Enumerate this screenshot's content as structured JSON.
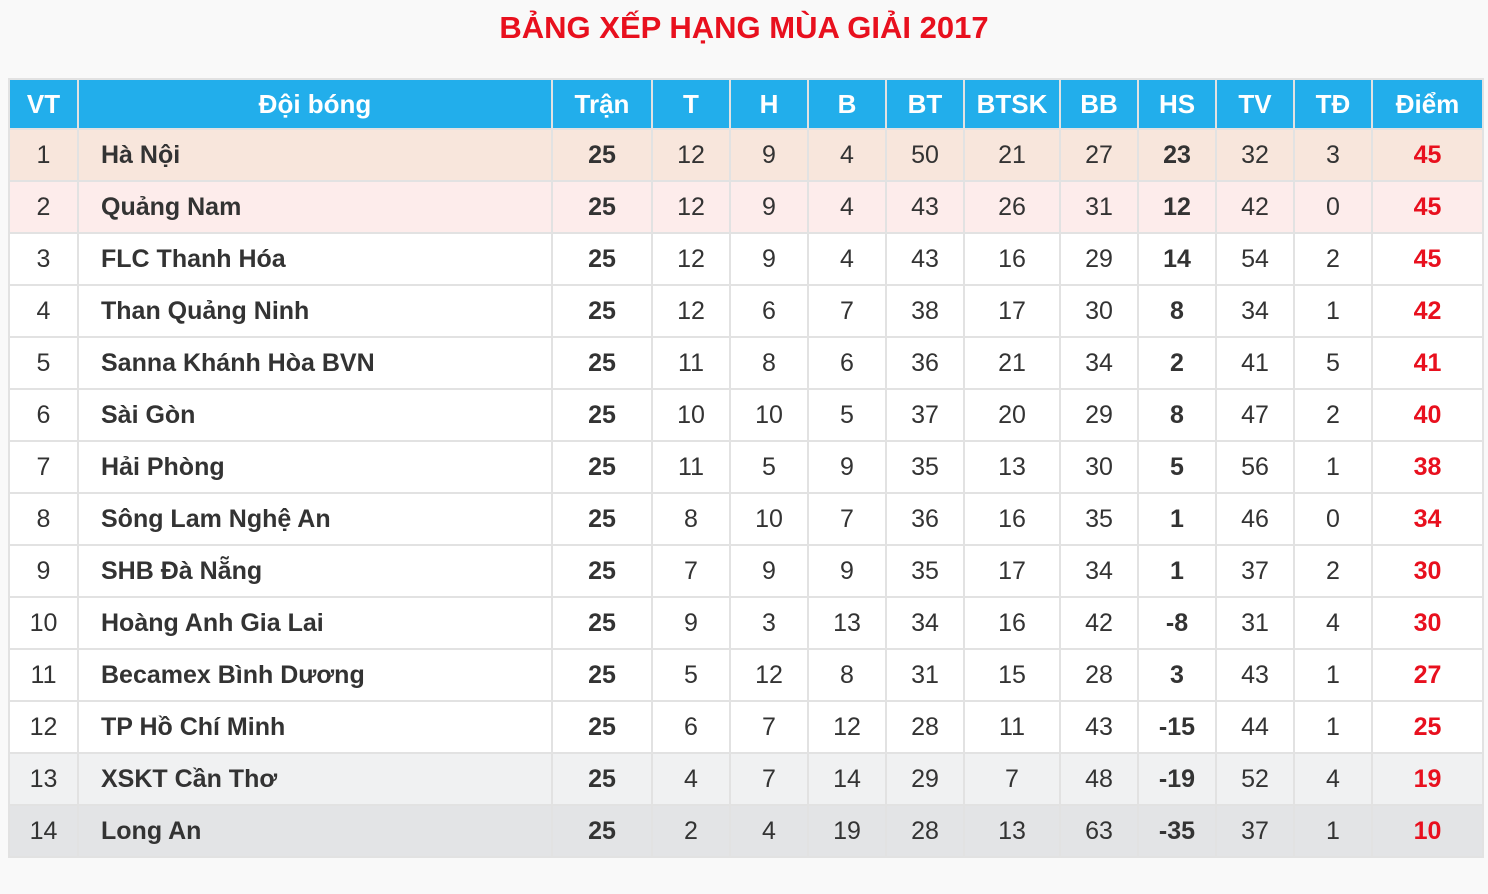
{
  "title": "BẢNG XẾP HẠNG MÙA GIẢI 2017",
  "headers": [
    "VT",
    "Đội bóng",
    "Trận",
    "T",
    "H",
    "B",
    "BT",
    "BTSK",
    "BB",
    "HS",
    "TV",
    "TĐ",
    "Điểm"
  ],
  "colors": {
    "header": "#22aeeb",
    "title": "#e8101e",
    "points": "#e8101e"
  },
  "rows": [
    [
      "1",
      "Hà Nội",
      "25",
      "12",
      "9",
      "4",
      "50",
      "21",
      "27",
      "23",
      "32",
      "3",
      "45"
    ],
    [
      "2",
      "Quảng Nam",
      "25",
      "12",
      "9",
      "4",
      "43",
      "26",
      "31",
      "12",
      "42",
      "0",
      "45"
    ],
    [
      "3",
      "FLC Thanh Hóa",
      "25",
      "12",
      "9",
      "4",
      "43",
      "16",
      "29",
      "14",
      "54",
      "2",
      "45"
    ],
    [
      "4",
      "Than Quảng Ninh",
      "25",
      "12",
      "6",
      "7",
      "38",
      "17",
      "30",
      "8",
      "34",
      "1",
      "42"
    ],
    [
      "5",
      "Sanna Khánh Hòa BVN",
      "25",
      "11",
      "8",
      "6",
      "36",
      "21",
      "34",
      "2",
      "41",
      "5",
      "41"
    ],
    [
      "6",
      "Sài Gòn",
      "25",
      "10",
      "10",
      "5",
      "37",
      "20",
      "29",
      "8",
      "47",
      "2",
      "40"
    ],
    [
      "7",
      "Hải Phòng",
      "25",
      "11",
      "5",
      "9",
      "35",
      "13",
      "30",
      "5",
      "56",
      "1",
      "38"
    ],
    [
      "8",
      "Sông Lam Nghệ An",
      "25",
      "8",
      "10",
      "7",
      "36",
      "16",
      "35",
      "1",
      "46",
      "0",
      "34"
    ],
    [
      "9",
      "SHB Đà Nẵng",
      "25",
      "7",
      "9",
      "9",
      "35",
      "17",
      "34",
      "1",
      "37",
      "2",
      "30"
    ],
    [
      "10",
      "Hoàng Anh Gia Lai",
      "25",
      "9",
      "3",
      "13",
      "34",
      "16",
      "42",
      "-8",
      "31",
      "4",
      "30"
    ],
    [
      "11",
      "Becamex Bình Dương",
      "25",
      "5",
      "12",
      "8",
      "31",
      "15",
      "28",
      "3",
      "43",
      "1",
      "27"
    ],
    [
      "12",
      "TP Hồ Chí Minh",
      "25",
      "6",
      "7",
      "12",
      "28",
      "11",
      "43",
      "-15",
      "44",
      "1",
      "25"
    ],
    [
      "13",
      "XSKT Cần Thơ",
      "25",
      "4",
      "7",
      "14",
      "29",
      "7",
      "48",
      "-19",
      "52",
      "4",
      "19"
    ],
    [
      "14",
      "Long An",
      "25",
      "2",
      "4",
      "19",
      "28",
      "13",
      "63",
      "-35",
      "37",
      "1",
      "10"
    ]
  ]
}
